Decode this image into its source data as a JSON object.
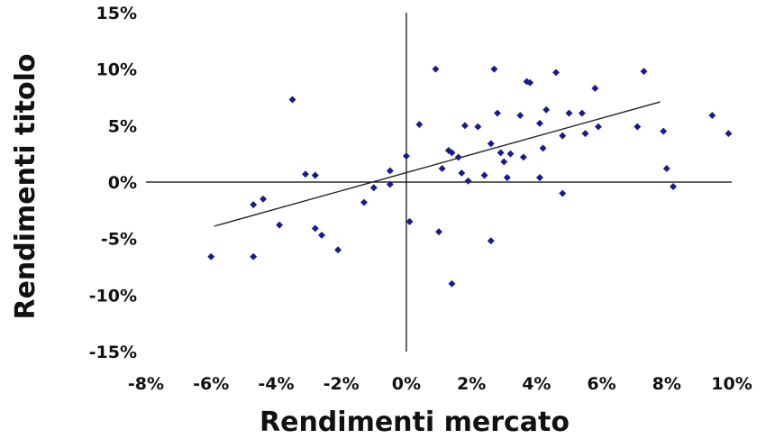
{
  "chart_data": {
    "type": "scatter",
    "title": "",
    "xlabel": "Rendimenti mercato",
    "ylabel": "Rendimenti titolo",
    "xlim": [
      -8,
      10
    ],
    "ylim": [
      -15,
      15
    ],
    "x_ticks": [
      -8,
      -6,
      -4,
      -2,
      0,
      2,
      4,
      6,
      8,
      10
    ],
    "y_ticks": [
      15,
      10,
      5,
      0,
      -5,
      -10,
      -15
    ],
    "x_tick_labels": [
      "-8%",
      "-6%",
      "-4%",
      "-2%",
      "0%",
      "2%",
      "4%",
      "6%",
      "8%",
      "10%"
    ],
    "y_tick_labels": [
      "15%",
      "10%",
      "5%",
      "0%",
      "-5%",
      "-10%",
      "-15%"
    ],
    "grid": false,
    "legend": "none",
    "series": [
      {
        "color": "#1a1a8c",
        "points": [
          [
            -6.0,
            -6.6
          ],
          [
            -4.7,
            -6.6
          ],
          [
            -4.7,
            -2.0
          ],
          [
            -4.4,
            -1.5
          ],
          [
            -3.9,
            -3.8
          ],
          [
            -3.5,
            7.3
          ],
          [
            -3.1,
            0.7
          ],
          [
            -2.8,
            0.6
          ],
          [
            -2.8,
            -4.1
          ],
          [
            -2.6,
            -4.7
          ],
          [
            -2.1,
            -6.0
          ],
          [
            -1.3,
            -1.8
          ],
          [
            -1.0,
            -0.5
          ],
          [
            -0.5,
            -0.2
          ],
          [
            -0.5,
            1.0
          ],
          [
            0.0,
            2.3
          ],
          [
            0.1,
            -3.5
          ],
          [
            0.4,
            5.1
          ],
          [
            0.9,
            10.0
          ],
          [
            1.0,
            -4.4
          ],
          [
            1.1,
            1.2
          ],
          [
            1.3,
            2.8
          ],
          [
            1.4,
            2.6
          ],
          [
            1.4,
            -9.0
          ],
          [
            1.6,
            2.2
          ],
          [
            1.7,
            0.8
          ],
          [
            1.8,
            5.0
          ],
          [
            1.9,
            0.1
          ],
          [
            2.2,
            4.9
          ],
          [
            2.4,
            0.6
          ],
          [
            2.6,
            3.4
          ],
          [
            2.6,
            -5.2
          ],
          [
            2.7,
            10.0
          ],
          [
            2.8,
            6.1
          ],
          [
            2.9,
            2.6
          ],
          [
            3.0,
            1.8
          ],
          [
            3.1,
            0.4
          ],
          [
            3.2,
            2.5
          ],
          [
            3.5,
            5.9
          ],
          [
            3.6,
            2.2
          ],
          [
            3.7,
            8.9
          ],
          [
            3.8,
            8.8
          ],
          [
            4.1,
            5.2
          ],
          [
            4.1,
            0.4
          ],
          [
            4.2,
            3.0
          ],
          [
            4.3,
            6.4
          ],
          [
            4.6,
            9.7
          ],
          [
            4.8,
            4.1
          ],
          [
            4.8,
            -1.0
          ],
          [
            5.0,
            6.1
          ],
          [
            5.4,
            6.1
          ],
          [
            5.5,
            4.3
          ],
          [
            5.8,
            8.3
          ],
          [
            5.9,
            4.9
          ],
          [
            7.1,
            4.9
          ],
          [
            7.3,
            9.8
          ],
          [
            7.9,
            4.5
          ],
          [
            8.0,
            1.2
          ],
          [
            8.2,
            -0.4
          ],
          [
            9.4,
            5.9
          ],
          [
            9.9,
            4.3
          ]
        ]
      }
    ],
    "trendline": {
      "x": [
        -5.9,
        7.8
      ],
      "y": [
        -3.9,
        7.1
      ]
    }
  }
}
